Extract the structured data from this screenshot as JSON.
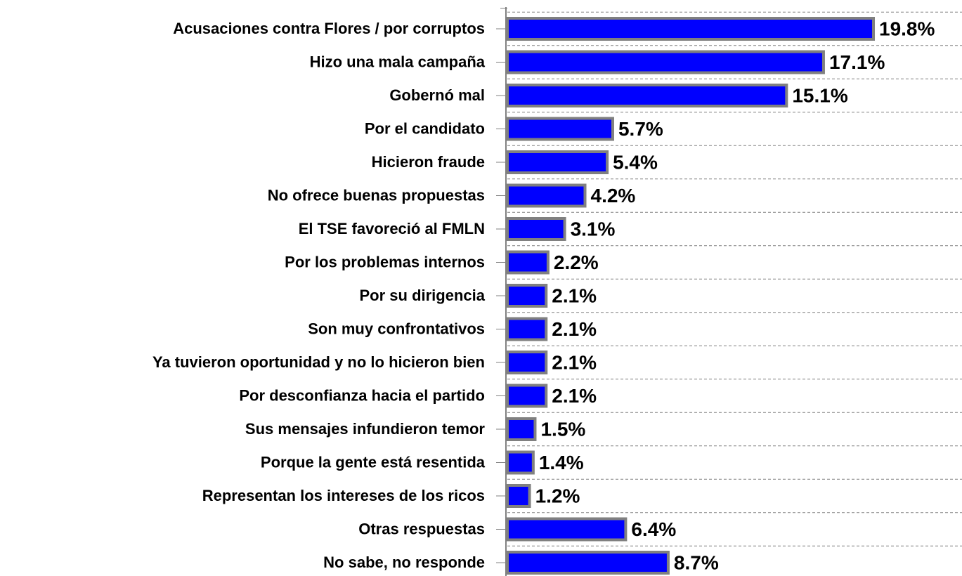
{
  "chart_data": {
    "type": "barh",
    "categories": [
      "Acusaciones contra Flores / por corruptos",
      "Hizo una mala campaña",
      "Gobernó mal",
      "Por el candidato",
      "Hicieron fraude",
      "No ofrece buenas propuestas",
      "El TSE favoreció al FMLN",
      "Por los problemas internos",
      "Por su dirigencia",
      "Son muy confrontativos",
      "Ya tuvieron oportunidad y no lo hicieron bien",
      "Por desconfianza hacia el partido",
      "Sus mensajes infundieron temor",
      "Porque la gente está resentida",
      "Representan los intereses de los ricos",
      "Otras respuestas",
      "No sabe, no responde"
    ],
    "values": [
      19.8,
      17.1,
      15.1,
      5.7,
      5.4,
      4.2,
      3.1,
      2.2,
      2.1,
      2.1,
      2.1,
      2.1,
      1.5,
      1.4,
      1.2,
      6.4,
      8.7
    ],
    "value_labels": [
      "19.8%",
      "17.1%",
      "15.1%",
      "5.7%",
      "5.4%",
      "4.2%",
      "3.1%",
      "2.2%",
      "2.1%",
      "2.1%",
      "2.1%",
      "2.1%",
      "1.5%",
      "1.4%",
      "1.2%",
      "6.4%",
      "8.7%"
    ],
    "color": "#0000ff",
    "grid": true
  }
}
